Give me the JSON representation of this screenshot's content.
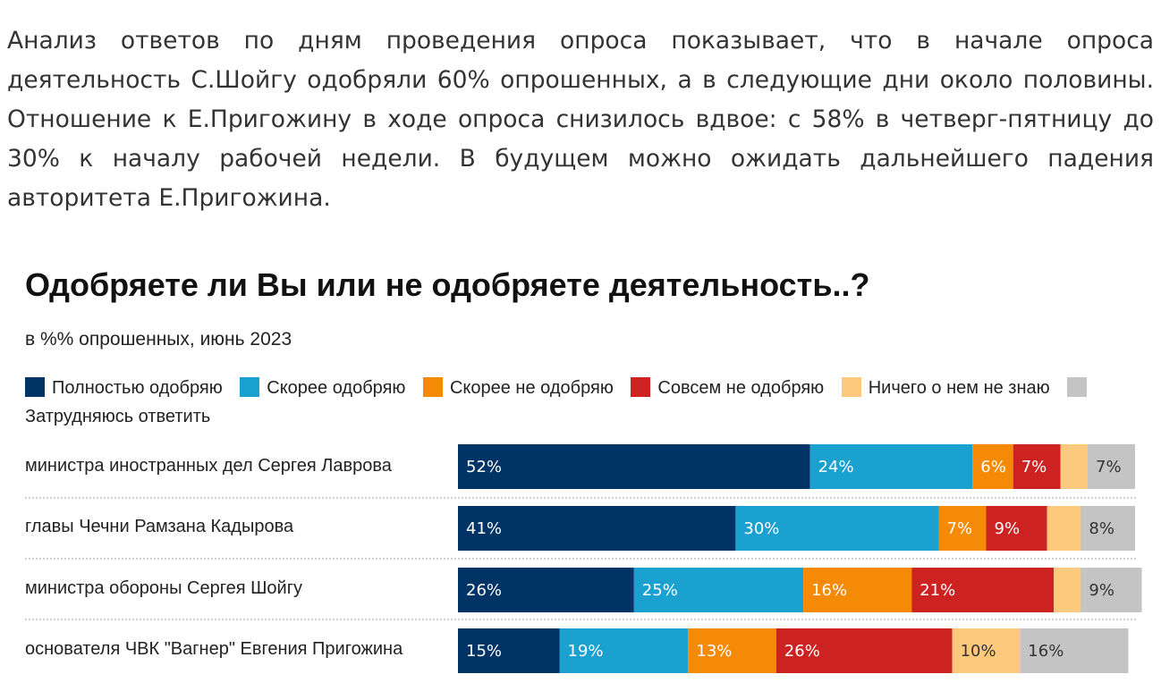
{
  "intro_text": "Анализ ответов по дням проведения опроса показывает, что в начале опроса деятельность С.Шойгу одобряли 60% опрошенных, а в следующие дни около половины. Отношение к Е.Пригожину в ходе опроса снизилось вдвое: с 58% в четверг-пятницу до 30% к началу рабочей недели. В будущем можно ожидать дальнейшего падения авторитета Е.Пригожина.",
  "chart_data": {
    "type": "stacked-bar-horizontal",
    "title": "Одобряете ли Вы или не одобряете деятельность..?",
    "subtitle": "в %% опрошенных, июнь 2023",
    "legend_position": "top",
    "xlim": [
      0,
      100
    ],
    "series": [
      {
        "name": "Полностью одобряю",
        "color": "#003366",
        "text_color": "#ffffff",
        "values": [
          52,
          41,
          26,
          15
        ],
        "labels": [
          "52%",
          "41%",
          "26%",
          "15%"
        ]
      },
      {
        "name": "Скорее одобряю",
        "color": "#1ba1cf",
        "text_color": "#ffffff",
        "values": [
          24,
          30,
          25,
          19
        ],
        "labels": [
          "24%",
          "30%",
          "25%",
          "19%"
        ]
      },
      {
        "name": "Скорее не одобряю",
        "color": "#f58a07",
        "text_color": "#ffffff",
        "values": [
          6,
          7,
          16,
          13
        ],
        "labels": [
          "6%",
          "7%",
          "16%",
          "13%"
        ]
      },
      {
        "name": "Совсем не одобряю",
        "color": "#cc2222",
        "text_color": "#ffffff",
        "values": [
          7,
          9,
          21,
          26
        ],
        "labels": [
          "7%",
          "9%",
          "21%",
          "26%"
        ]
      },
      {
        "name": "Ничего о нем не знаю",
        "color": "#fdc97c",
        "text_color": "#333333",
        "values": [
          4,
          5,
          4,
          10
        ],
        "labels": [
          "",
          "",
          "",
          "10%"
        ]
      },
      {
        "name": "Затрудняюсь ответить",
        "color": "#c4c4c4",
        "text_color": "#333333",
        "values": [
          7,
          8,
          9,
          16
        ],
        "labels": [
          "7%",
          "8%",
          "9%",
          "16%"
        ]
      }
    ],
    "categories": [
      "министра иностранных дел Сергея Лаврова",
      "главы Чечни Рамзана Кадырова",
      "министра обороны Сергея Шойгу",
      "основателя ЧВК \"Вагнер\" Евгения Пригожина"
    ]
  }
}
